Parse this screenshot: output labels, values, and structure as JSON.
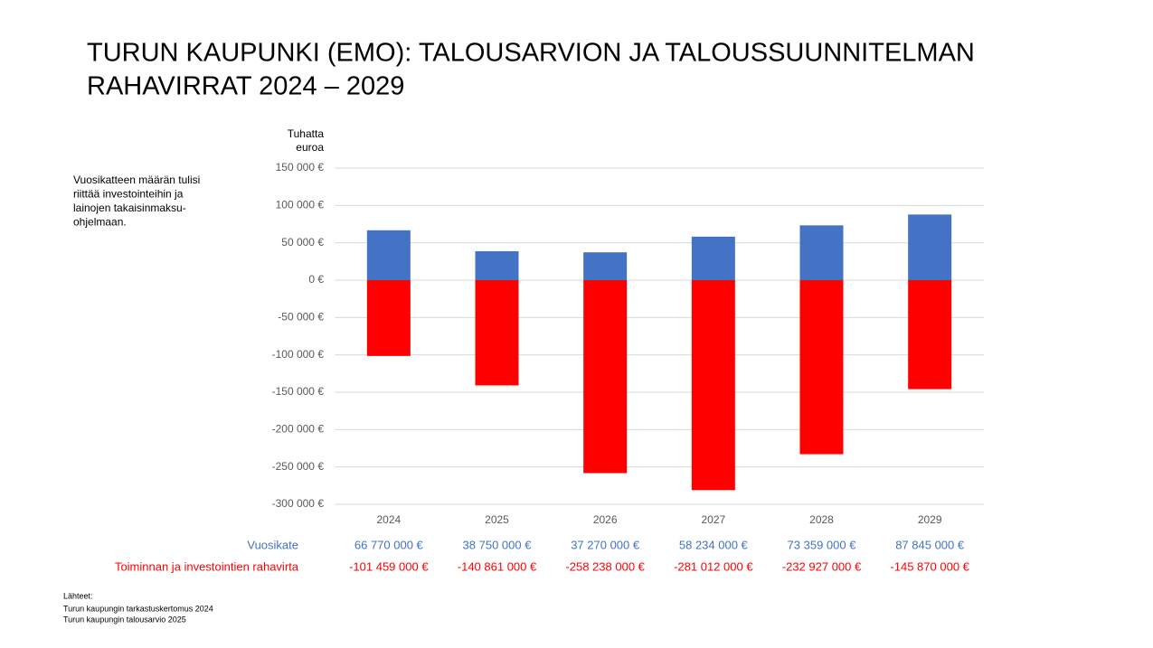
{
  "chart_data": {
    "type": "bar",
    "title": [
      "TURUN KAUPUNKI (EMO): TALOUSARVION JA TALOUSSUUNNITELMAN",
      "RAHAVIRRAT 2024 – 2029"
    ],
    "y_label": [
      "Tuhatta",
      "euroa"
    ],
    "annotation": [
      "Vuosikatteen määrän tulisi",
      "riittää investointeihin ja",
      "lainojen takaisinmaksu-",
      "ohjelmaan."
    ],
    "categories": [
      "2024",
      "2025",
      "2026",
      "2027",
      "2028",
      "2029"
    ],
    "series": [
      {
        "name": "Vuosikate",
        "color": "#4472c4",
        "values": [
          66770,
          38750,
          37270,
          58234,
          73359,
          87845
        ],
        "value_labels": [
          "66 770 000 €",
          "38 750 000 €",
          "37 270 000 €",
          "58 234 000 €",
          "73 359 000 €",
          "87 845 000 €"
        ]
      },
      {
        "name": "Toiminnan ja investointien rahavirta",
        "color": "#ff0000",
        "values": [
          -101459,
          -140861,
          -258238,
          -281012,
          -232927,
          -145870
        ],
        "value_labels": [
          "-101 459 000 €",
          "-140 861 000 €",
          "-258 238 000 €",
          "-281 012 000 €",
          "-232 927 000 €",
          "-145 870 000 €"
        ]
      }
    ],
    "ylim": [
      -300000,
      150000
    ],
    "yticks": [
      {
        "value": -300000,
        "label": "-300 000 €"
      },
      {
        "value": -250000,
        "label": "-250 000 €"
      },
      {
        "value": -200000,
        "label": "-200 000 €"
      },
      {
        "value": -150000,
        "label": "-150 000 €"
      },
      {
        "value": -100000,
        "label": "-100 000 €"
      },
      {
        "value": -50000,
        "label": "-50 000 €"
      },
      {
        "value": 0,
        "label": "0 €"
      },
      {
        "value": 50000,
        "label": "50 000 €"
      },
      {
        "value": 100000,
        "label": "100 000 €"
      },
      {
        "value": 150000,
        "label": "150 000 €"
      }
    ],
    "grid": true,
    "sources": {
      "title": "Lähteet:",
      "items": [
        "Turun kaupungin tarkastuskertomus 2024",
        "Turun kaupungin talousarvio 2025"
      ]
    }
  }
}
